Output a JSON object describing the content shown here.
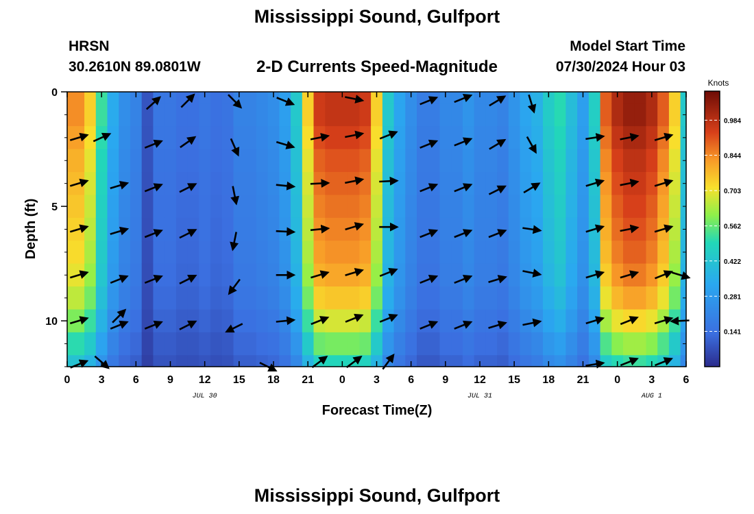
{
  "title": "Mississippi Sound, Gulfport",
  "station": {
    "id": "HRSN",
    "coords": "30.2610N  89.0801W"
  },
  "model": {
    "label": "Model Start Time",
    "time": "07/30/2024 Hour 03"
  },
  "chart_data": {
    "type": "heatmap",
    "title": "2-D Currents Speed-Magnitude",
    "xlabel": "Forecast Time(Z)",
    "ylabel": "Depth (ft)",
    "colorbar_label": "Knots",
    "x_tick_labels": [
      "0",
      "3",
      "6",
      "9",
      "12",
      "15",
      "18",
      "21",
      "0",
      "3",
      "6",
      "9",
      "12",
      "15",
      "18",
      "21",
      "0",
      "3",
      "6"
    ],
    "x_range_hours": [
      0,
      54
    ],
    "date_labels": [
      {
        "text": "JUL 30",
        "hour": 12
      },
      {
        "text": "JUL 31",
        "hour": 36
      },
      {
        "text": "AUG 1",
        "hour": 51
      }
    ],
    "y_tick_labels": [
      "0",
      "5",
      "10"
    ],
    "y_range_ft": [
      0,
      12
    ],
    "colorbar_ticks": [
      "0.984",
      "0.844",
      "0.703",
      "0.562",
      "0.422",
      "0.281",
      "0.141"
    ],
    "colorbar_range": [
      0,
      1.1
    ],
    "columns_hours": [
      0,
      1,
      2,
      3,
      4,
      5,
      6,
      7,
      8,
      9,
      10,
      11,
      12,
      13,
      14,
      15,
      16,
      17,
      18,
      19,
      20,
      21,
      22,
      23,
      24,
      25,
      26,
      27,
      28,
      29,
      30,
      31,
      32,
      33,
      34,
      35,
      36,
      37,
      38,
      39,
      40,
      41,
      42,
      43,
      44,
      45,
      46,
      47,
      48,
      49,
      50,
      51,
      52,
      53,
      54
    ],
    "surface_speed_knots": [
      0.84,
      0.84,
      0.74,
      0.52,
      0.34,
      0.24,
      0.2,
      0.08,
      0.16,
      0.16,
      0.14,
      0.14,
      0.16,
      0.14,
      0.15,
      0.2,
      0.2,
      0.22,
      0.24,
      0.3,
      0.44,
      0.74,
      0.95,
      0.97,
      0.97,
      0.97,
      0.95,
      0.74,
      0.44,
      0.32,
      0.24,
      0.18,
      0.18,
      0.22,
      0.22,
      0.26,
      0.22,
      0.22,
      0.2,
      0.26,
      0.32,
      0.36,
      0.45,
      0.5,
      0.4,
      0.3,
      0.46,
      0.9,
      1.0,
      1.04,
      1.04,
      1.0,
      0.9,
      0.74,
      0.44
    ],
    "depth_factor_rows_ft": [
      0,
      1,
      2,
      3,
      4,
      5,
      6,
      7,
      8,
      9,
      10,
      11,
      12
    ],
    "depth_factor": [
      1.0,
      1.0,
      0.97,
      0.94,
      0.92,
      0.9,
      0.88,
      0.86,
      0.83,
      0.78,
      0.7,
      0.6,
      0.5
    ],
    "vector_rows_ft": [
      0.5,
      2,
      4,
      6,
      8,
      10,
      11.7
    ],
    "vectors": [
      {
        "hour": 1,
        "depth": 2,
        "dx": 1,
        "dy": -0.3
      },
      {
        "hour": 1,
        "depth": 4,
        "dx": 1,
        "dy": -0.3
      },
      {
        "hour": 1,
        "depth": 6,
        "dx": 1,
        "dy": -0.3
      },
      {
        "hour": 1,
        "depth": 8,
        "dx": 1,
        "dy": -0.3
      },
      {
        "hour": 1,
        "depth": 10,
        "dx": 1,
        "dy": -0.3
      },
      {
        "hour": 1,
        "depth": 11.9,
        "dx": 1,
        "dy": -0.4
      },
      {
        "hour": 3,
        "depth": 2,
        "dx": 1,
        "dy": -0.45
      },
      {
        "hour": 3,
        "depth": 11.8,
        "dx": 0.8,
        "dy": 0.7
      },
      {
        "hour": 4.5,
        "depth": 4.1,
        "dx": 1,
        "dy": -0.3
      },
      {
        "hour": 4.5,
        "depth": 6.1,
        "dx": 1,
        "dy": -0.3
      },
      {
        "hour": 4.5,
        "depth": 8.2,
        "dx": 1,
        "dy": -0.4
      },
      {
        "hour": 4.5,
        "depth": 10.2,
        "dx": 1,
        "dy": -0.4
      },
      {
        "hour": 4.5,
        "depth": 9.8,
        "dx": 0.7,
        "dy": -0.7
      },
      {
        "hour": 7.5,
        "depth": 0.5,
        "dx": 1,
        "dy": -0.9
      },
      {
        "hour": 7.5,
        "depth": 2.3,
        "dx": 1,
        "dy": -0.4
      },
      {
        "hour": 7.5,
        "depth": 4.2,
        "dx": 1,
        "dy": -0.4
      },
      {
        "hour": 7.5,
        "depth": 6.2,
        "dx": 1,
        "dy": -0.4
      },
      {
        "hour": 7.5,
        "depth": 8.2,
        "dx": 1,
        "dy": -0.4
      },
      {
        "hour": 7.5,
        "depth": 10.2,
        "dx": 1,
        "dy": -0.4
      },
      {
        "hour": 10.5,
        "depth": 0.4,
        "dx": 1,
        "dy": -1
      },
      {
        "hour": 10.5,
        "depth": 2.2,
        "dx": 1,
        "dy": -0.7
      },
      {
        "hour": 10.5,
        "depth": 4.2,
        "dx": 1,
        "dy": -0.5
      },
      {
        "hour": 10.5,
        "depth": 6.2,
        "dx": 1,
        "dy": -0.5
      },
      {
        "hour": 10.5,
        "depth": 8.2,
        "dx": 1,
        "dy": -0.5
      },
      {
        "hour": 10.5,
        "depth": 10.2,
        "dx": 1,
        "dy": -0.5
      },
      {
        "hour": 14.6,
        "depth": 0.4,
        "dx": 0.8,
        "dy": 0.8
      },
      {
        "hour": 14.6,
        "depth": 2.4,
        "dx": 0.4,
        "dy": 0.9
      },
      {
        "hour": 14.6,
        "depth": 4.5,
        "dx": 0.2,
        "dy": 1
      },
      {
        "hour": 14.6,
        "depth": 6.5,
        "dx": -0.2,
        "dy": 1
      },
      {
        "hour": 14.6,
        "depth": 8.5,
        "dx": -0.6,
        "dy": 0.8
      },
      {
        "hour": 14.6,
        "depth": 10.3,
        "dx": -1,
        "dy": 0.5
      },
      {
        "hour": 17.5,
        "depth": 12,
        "dx": 1,
        "dy": 0.5
      },
      {
        "hour": 19,
        "depth": 0.4,
        "dx": 1,
        "dy": 0.4
      },
      {
        "hour": 19,
        "depth": 2.3,
        "dx": 1,
        "dy": 0.3
      },
      {
        "hour": 19,
        "depth": 4.1,
        "dx": 1,
        "dy": 0.1
      },
      {
        "hour": 19,
        "depth": 6.1,
        "dx": 1,
        "dy": 0.05
      },
      {
        "hour": 19,
        "depth": 8,
        "dx": 1,
        "dy": 0
      },
      {
        "hour": 19,
        "depth": 10,
        "dx": 1,
        "dy": -0.1
      },
      {
        "hour": 22,
        "depth": 2,
        "dx": 1,
        "dy": -0.2
      },
      {
        "hour": 22,
        "depth": 4,
        "dx": 1,
        "dy": -0.05
      },
      {
        "hour": 22,
        "depth": 6,
        "dx": 1,
        "dy": -0.1
      },
      {
        "hour": 22,
        "depth": 8,
        "dx": 1,
        "dy": -0.3
      },
      {
        "hour": 22,
        "depth": 10,
        "dx": 1,
        "dy": -0.4
      },
      {
        "hour": 22,
        "depth": 11.8,
        "dx": 0.8,
        "dy": -0.6
      },
      {
        "hour": 25,
        "depth": 0.3,
        "dx": 1,
        "dy": 0.2
      },
      {
        "hour": 25,
        "depth": 1.9,
        "dx": 1,
        "dy": -0.2
      },
      {
        "hour": 25,
        "depth": 3.9,
        "dx": 1,
        "dy": -0.2
      },
      {
        "hour": 25,
        "depth": 5.9,
        "dx": 1,
        "dy": -0.3
      },
      {
        "hour": 25,
        "depth": 7.9,
        "dx": 1,
        "dy": -0.3
      },
      {
        "hour": 25,
        "depth": 9.9,
        "dx": 1,
        "dy": -0.4
      },
      {
        "hour": 25,
        "depth": 11.8,
        "dx": 0.8,
        "dy": -0.6
      },
      {
        "hour": 28,
        "depth": 1.9,
        "dx": 1,
        "dy": -0.4
      },
      {
        "hour": 28,
        "depth": 3.9,
        "dx": 1,
        "dy": -0.05
      },
      {
        "hour": 28,
        "depth": 5.9,
        "dx": 1,
        "dy": 0
      },
      {
        "hour": 28,
        "depth": 7.9,
        "dx": 1,
        "dy": -0.4
      },
      {
        "hour": 28,
        "depth": 9.9,
        "dx": 1,
        "dy": -0.4
      },
      {
        "hour": 28,
        "depth": 11.8,
        "dx": 0.6,
        "dy": -0.8
      },
      {
        "hour": 31.5,
        "depth": 0.4,
        "dx": 1,
        "dy": -0.4
      },
      {
        "hour": 31.5,
        "depth": 2.3,
        "dx": 1,
        "dy": -0.4
      },
      {
        "hour": 31.5,
        "depth": 4.2,
        "dx": 1,
        "dy": -0.4
      },
      {
        "hour": 31.5,
        "depth": 6.2,
        "dx": 1,
        "dy": -0.4
      },
      {
        "hour": 31.5,
        "depth": 8.2,
        "dx": 1,
        "dy": -0.4
      },
      {
        "hour": 31.5,
        "depth": 10.2,
        "dx": 1,
        "dy": -0.4
      },
      {
        "hour": 34.5,
        "depth": 0.3,
        "dx": 1,
        "dy": -0.4
      },
      {
        "hour": 34.5,
        "depth": 2.2,
        "dx": 1,
        "dy": -0.4
      },
      {
        "hour": 34.5,
        "depth": 4.2,
        "dx": 1,
        "dy": -0.4
      },
      {
        "hour": 34.5,
        "depth": 6.2,
        "dx": 1,
        "dy": -0.4
      },
      {
        "hour": 34.5,
        "depth": 8.2,
        "dx": 1,
        "dy": -0.4
      },
      {
        "hour": 34.5,
        "depth": 10.2,
        "dx": 1,
        "dy": -0.4
      },
      {
        "hour": 37.5,
        "depth": 0.4,
        "dx": 1,
        "dy": -0.6
      },
      {
        "hour": 37.5,
        "depth": 2.3,
        "dx": 1,
        "dy": -0.6
      },
      {
        "hour": 37.5,
        "depth": 4.3,
        "dx": 1,
        "dy": -0.5
      },
      {
        "hour": 37.5,
        "depth": 6.2,
        "dx": 1,
        "dy": -0.4
      },
      {
        "hour": 37.5,
        "depth": 8.2,
        "dx": 1,
        "dy": -0.3
      },
      {
        "hour": 37.5,
        "depth": 10.2,
        "dx": 1,
        "dy": -0.3
      },
      {
        "hour": 40.5,
        "depth": 0.5,
        "dx": 0.3,
        "dy": 1
      },
      {
        "hour": 40.5,
        "depth": 2.3,
        "dx": 0.5,
        "dy": 0.9
      },
      {
        "hour": 40.5,
        "depth": 4.2,
        "dx": 1,
        "dy": -0.6
      },
      {
        "hour": 40.5,
        "depth": 6,
        "dx": 1,
        "dy": 0.15
      },
      {
        "hour": 40.5,
        "depth": 7.9,
        "dx": 1,
        "dy": 0.2
      },
      {
        "hour": 40.5,
        "depth": 10.1,
        "dx": 1,
        "dy": -0.2
      },
      {
        "hour": 46,
        "depth": 2,
        "dx": 1,
        "dy": -0.15
      },
      {
        "hour": 46,
        "depth": 4,
        "dx": 1,
        "dy": -0.3
      },
      {
        "hour": 46,
        "depth": 6,
        "dx": 1,
        "dy": -0.3
      },
      {
        "hour": 46,
        "depth": 8,
        "dx": 1,
        "dy": -0.3
      },
      {
        "hour": 46,
        "depth": 10,
        "dx": 1,
        "dy": -0.3
      },
      {
        "hour": 46,
        "depth": 11.9,
        "dx": 1,
        "dy": -0.15
      },
      {
        "hour": 49,
        "depth": 2,
        "dx": 1,
        "dy": -0.2
      },
      {
        "hour": 49,
        "depth": 4,
        "dx": 1,
        "dy": -0.2
      },
      {
        "hour": 49,
        "depth": 6,
        "dx": 1,
        "dy": -0.2
      },
      {
        "hour": 49,
        "depth": 8,
        "dx": 1,
        "dy": -0.3
      },
      {
        "hour": 49,
        "depth": 10,
        "dx": 1,
        "dy": -0.4
      },
      {
        "hour": 49,
        "depth": 11.8,
        "dx": 1,
        "dy": -0.4
      },
      {
        "hour": 52,
        "depth": 2,
        "dx": 1,
        "dy": -0.3
      },
      {
        "hour": 52,
        "depth": 4,
        "dx": 1,
        "dy": -0.3
      },
      {
        "hour": 52,
        "depth": 6,
        "dx": 1,
        "dy": -0.3
      },
      {
        "hour": 52,
        "depth": 8,
        "dx": 1,
        "dy": -0.4
      },
      {
        "hour": 52,
        "depth": 10,
        "dx": 1,
        "dy": -0.3
      },
      {
        "hour": 52,
        "depth": 11.8,
        "dx": 1,
        "dy": -0.4
      },
      {
        "hour": 53.5,
        "depth": 8,
        "dx": 1,
        "dy": 0.3
      },
      {
        "hour": 53.5,
        "depth": 10,
        "dx": -1,
        "dy": 0.05
      }
    ]
  }
}
